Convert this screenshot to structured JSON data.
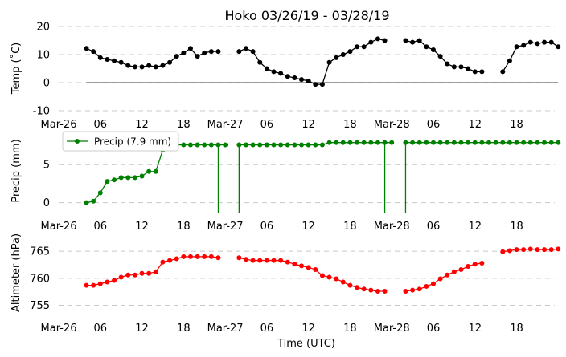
{
  "chart_data": {
    "type": "line",
    "title": "Hoko 03/26/19 - 03/28/19",
    "xlabel": "Time (UTC)",
    "x_unit": "hours since 2019-03-26 00:00 UTC",
    "xlim": [
      0,
      71.5
    ],
    "x_tick_values": [
      0,
      6,
      12,
      18,
      24,
      30,
      36,
      42,
      48,
      54,
      60,
      66
    ],
    "x_tick_labels": [
      "Mar-26",
      "06",
      "12",
      "18",
      "Mar-27",
      "06",
      "12",
      "18",
      "Mar-28",
      "06",
      "12",
      "18"
    ],
    "panels": [
      {
        "id": "temp",
        "ylabel": "Temp (˚C)",
        "ylim": [
          -10,
          20
        ],
        "yticks": [
          -10,
          0,
          10,
          20
        ],
        "grid": "horizontal-dashed",
        "zero_line": true,
        "series": [
          {
            "color": "#000000",
            "x": [
              4,
              5,
              6,
              7,
              8,
              9,
              10,
              11,
              12,
              13,
              14,
              15,
              16,
              17,
              18,
              19,
              20,
              21,
              22,
              23,
              24,
              null,
              26,
              27,
              28,
              29,
              30,
              31,
              32,
              33,
              34,
              35,
              36,
              37,
              38,
              39,
              40,
              41,
              42,
              43,
              44,
              45,
              46,
              47,
              48,
              null,
              50,
              51,
              52,
              53,
              54,
              55,
              56,
              57,
              58,
              59,
              60,
              61,
              62,
              null,
              64,
              65,
              66,
              67,
              68,
              69,
              70,
              71,
              72
            ],
            "y": [
              12.2,
              11.1,
              8.9,
              8.3,
              7.8,
              7.2,
              6.1,
              5.6,
              5.6,
              6.1,
              5.6,
              6.1,
              7.2,
              9.4,
              10.6,
              12.2,
              9.4,
              10.6,
              11.1,
              11.1,
              null,
              null,
              11.1,
              12.2,
              11.1,
              7.2,
              5.0,
              3.9,
              3.3,
              2.2,
              1.7,
              1.1,
              0.6,
              -0.6,
              -0.6,
              7.2,
              8.9,
              10.0,
              11.1,
              12.8,
              12.8,
              14.4,
              15.6,
              15.0,
              null,
              null,
              15.0,
              14.4,
              15.0,
              12.8,
              11.7,
              9.4,
              6.7,
              5.6,
              5.6,
              5.0,
              3.9,
              3.9,
              null,
              null,
              3.9,
              7.8,
              12.8,
              13.3,
              14.4,
              13.9,
              14.4,
              14.4,
              12.8
            ]
          }
        ]
      },
      {
        "id": "precip",
        "ylabel": "Precip (mm)",
        "ylim": [
          -1.3,
          8.5
        ],
        "yticks": [
          0,
          5
        ],
        "grid": "horizontal-dashed",
        "legend": {
          "label": "Precip (7.9 mm)",
          "location": "upper-left"
        },
        "series": [
          {
            "name": "Precip (7.9 mm)",
            "color": "#008000",
            "x": [
              4,
              5,
              6,
              7,
              8,
              9,
              10,
              11,
              12,
              13,
              14,
              15,
              16,
              17,
              18,
              19,
              20,
              21,
              22,
              23,
              24,
              null,
              26,
              27,
              28,
              29,
              30,
              31,
              32,
              33,
              34,
              35,
              36,
              37,
              38,
              39,
              40,
              41,
              42,
              43,
              44,
              45,
              46,
              47,
              48,
              null,
              50,
              51,
              52,
              53,
              54,
              55,
              56,
              57,
              58,
              59,
              60,
              61,
              62,
              63,
              64,
              65,
              66,
              67,
              68,
              69,
              70,
              71,
              72
            ],
            "y": [
              0.0,
              0.2,
              1.3,
              2.8,
              3.0,
              3.3,
              3.3,
              3.3,
              3.5,
              4.1,
              4.1,
              6.9,
              7.6,
              7.6,
              7.6,
              7.6,
              7.6,
              7.6,
              7.6,
              7.6,
              7.6,
              null,
              7.6,
              7.6,
              7.6,
              7.6,
              7.6,
              7.6,
              7.6,
              7.6,
              7.6,
              7.6,
              7.6,
              7.6,
              7.6,
              7.9,
              7.9,
              7.9,
              7.9,
              7.9,
              7.9,
              7.9,
              7.9,
              7.9,
              7.9,
              null,
              7.9,
              7.9,
              7.9,
              7.9,
              7.9,
              7.9,
              7.9,
              7.9,
              7.9,
              7.9,
              7.9,
              7.9,
              7.9,
              7.9,
              7.9,
              7.9,
              7.9,
              7.9,
              7.9,
              7.9,
              7.9,
              7.9,
              7.9
            ]
          }
        ],
        "drop_lines": [
          {
            "x": 23,
            "from": 7.6,
            "to": -1.3
          },
          {
            "x": 26,
            "from": 7.6,
            "to": -1.3
          },
          {
            "x": 47,
            "from": 7.9,
            "to": -1.3
          },
          {
            "x": 50,
            "from": 7.9,
            "to": -1.3
          }
        ]
      },
      {
        "id": "altimeter",
        "ylabel": "Altimeter (hPa)",
        "ylim": [
          753.3,
          766.5
        ],
        "yticks": [
          755,
          760,
          765
        ],
        "grid": "horizontal-dashed",
        "series": [
          {
            "color": "#ff0000",
            "x": [
              4,
              5,
              6,
              7,
              8,
              9,
              10,
              11,
              12,
              13,
              14,
              15,
              16,
              17,
              18,
              19,
              20,
              21,
              22,
              23,
              24,
              null,
              26,
              27,
              28,
              29,
              30,
              31,
              32,
              33,
              34,
              35,
              36,
              37,
              38,
              39,
              40,
              41,
              42,
              43,
              44,
              45,
              46,
              47,
              48,
              null,
              50,
              51,
              52,
              53,
              54,
              55,
              56,
              57,
              58,
              59,
              60,
              61,
              62,
              null,
              64,
              65,
              66,
              67,
              68,
              69,
              70,
              71,
              72
            ],
            "y": [
              758.7,
              758.7,
              759.0,
              759.3,
              759.6,
              760.2,
              760.6,
              760.6,
              760.9,
              760.9,
              761.2,
              763.0,
              763.3,
              763.6,
              764.0,
              764.0,
              764.0,
              764.0,
              764.0,
              763.8,
              null,
              null,
              763.8,
              763.5,
              763.3,
              763.3,
              763.3,
              763.3,
              763.3,
              763.0,
              762.6,
              762.3,
              762.0,
              761.6,
              760.5,
              760.2,
              759.9,
              759.3,
              758.7,
              758.3,
              758.0,
              757.8,
              757.6,
              757.6,
              null,
              null,
              757.6,
              757.8,
              758.0,
              758.5,
              759.0,
              759.9,
              760.6,
              761.2,
              761.6,
              762.2,
              762.6,
              762.8,
              null,
              null,
              764.9,
              765.1,
              765.3,
              765.3,
              765.4,
              765.3,
              765.3,
              765.3,
              765.4
            ]
          }
        ]
      }
    ]
  }
}
